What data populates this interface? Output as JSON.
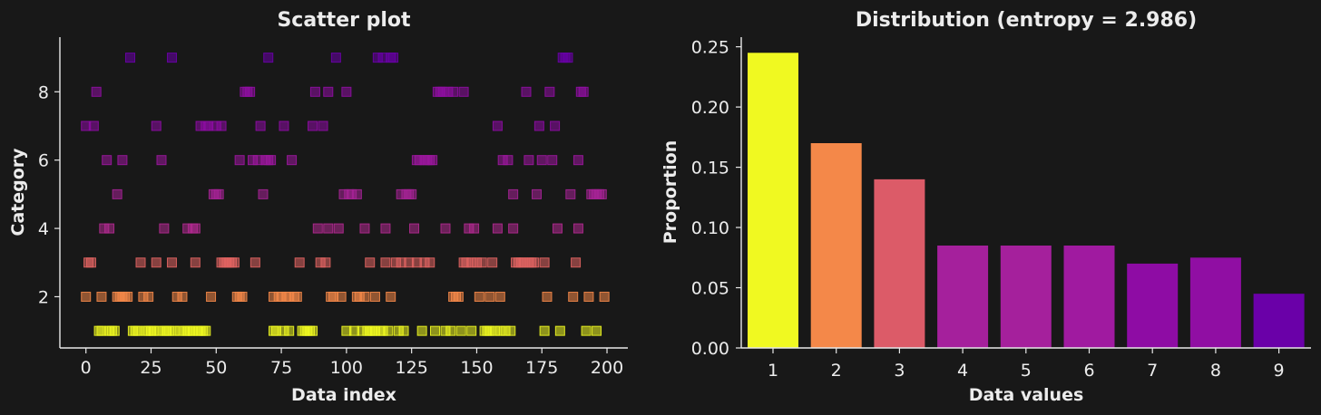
{
  "chart_data": [
    {
      "type": "scatter",
      "title": "Scatter plot",
      "xlabel": "Data index",
      "ylabel": "Category",
      "xlim": [
        -10,
        208
      ],
      "ylim": [
        0.5,
        9.6
      ],
      "xticks": [
        0,
        25,
        50,
        75,
        100,
        125,
        150,
        175,
        200
      ],
      "yticks": [
        2,
        4,
        6,
        8
      ],
      "colors": {
        "1": "#f0f921",
        "2": "#f48849",
        "3": "#e16462",
        "4": "#b12a90",
        "5": "#a62396",
        "6": "#9c179e",
        "7": "#8e0ca4",
        "8": "#900ea3",
        "9": "#6a00a8"
      },
      "points": [
        [
          0,
          7
        ],
        [
          0,
          2
        ],
        [
          1,
          3
        ],
        [
          2,
          3
        ],
        [
          3,
          7
        ],
        [
          4,
          8
        ],
        [
          5,
          1
        ],
        [
          6,
          2
        ],
        [
          6,
          1
        ],
        [
          7,
          4
        ],
        [
          8,
          6
        ],
        [
          9,
          4
        ],
        [
          9,
          1
        ],
        [
          10,
          1
        ],
        [
          11,
          1
        ],
        [
          12,
          5
        ],
        [
          12,
          2
        ],
        [
          13,
          2
        ],
        [
          14,
          6
        ],
        [
          14,
          2
        ],
        [
          15,
          2
        ],
        [
          16,
          2
        ],
        [
          17,
          9
        ],
        [
          18,
          1
        ],
        [
          19,
          1
        ],
        [
          20,
          1
        ],
        [
          21,
          3
        ],
        [
          22,
          2
        ],
        [
          23,
          1
        ],
        [
          24,
          2
        ],
        [
          24,
          1
        ],
        [
          25,
          1
        ],
        [
          26,
          1
        ],
        [
          27,
          7
        ],
        [
          27,
          3
        ],
        [
          28,
          1
        ],
        [
          29,
          6
        ],
        [
          30,
          4
        ],
        [
          30,
          1
        ],
        [
          31,
          1
        ],
        [
          32,
          1
        ],
        [
          33,
          9
        ],
        [
          33,
          3
        ],
        [
          34,
          1
        ],
        [
          35,
          2
        ],
        [
          36,
          1
        ],
        [
          37,
          2
        ],
        [
          38,
          1
        ],
        [
          39,
          4
        ],
        [
          39,
          1
        ],
        [
          40,
          1
        ],
        [
          41,
          4
        ],
        [
          41,
          1
        ],
        [
          42,
          4
        ],
        [
          42,
          3
        ],
        [
          43,
          1
        ],
        [
          44,
          7
        ],
        [
          44,
          1
        ],
        [
          45,
          1
        ],
        [
          46,
          7
        ],
        [
          46,
          1
        ],
        [
          47,
          7
        ],
        [
          48,
          2
        ],
        [
          49,
          5
        ],
        [
          50,
          7
        ],
        [
          50,
          5
        ],
        [
          51,
          5
        ],
        [
          52,
          7
        ],
        [
          52,
          3
        ],
        [
          53,
          3
        ],
        [
          54,
          3
        ],
        [
          55,
          3
        ],
        [
          56,
          3
        ],
        [
          57,
          3
        ],
        [
          58,
          2
        ],
        [
          59,
          6
        ],
        [
          59,
          2
        ],
        [
          60,
          2
        ],
        [
          61,
          8
        ],
        [
          62,
          8
        ],
        [
          63,
          8
        ],
        [
          64,
          6
        ],
        [
          65,
          3
        ],
        [
          66,
          6
        ],
        [
          67,
          7
        ],
        [
          68,
          5
        ],
        [
          69,
          6
        ],
        [
          70,
          6
        ],
        [
          70,
          9
        ],
        [
          71,
          6
        ],
        [
          72,
          2
        ],
        [
          72,
          1
        ],
        [
          73,
          1
        ],
        [
          74,
          2
        ],
        [
          75,
          2
        ],
        [
          76,
          7
        ],
        [
          76,
          1
        ],
        [
          77,
          2
        ],
        [
          78,
          1
        ],
        [
          78,
          2
        ],
        [
          79,
          6
        ],
        [
          80,
          2
        ],
        [
          81,
          2
        ],
        [
          82,
          3
        ],
        [
          83,
          1
        ],
        [
          84,
          1
        ],
        [
          85,
          1
        ],
        [
          86,
          1
        ],
        [
          87,
          1
        ],
        [
          87,
          7
        ],
        [
          88,
          8
        ],
        [
          89,
          4
        ],
        [
          90,
          3
        ],
        [
          91,
          7
        ],
        [
          92,
          3
        ],
        [
          93,
          8
        ],
        [
          93,
          4
        ],
        [
          94,
          2
        ],
        [
          95,
          2
        ],
        [
          96,
          9
        ],
        [
          97,
          4
        ],
        [
          98,
          2
        ],
        [
          99,
          5
        ],
        [
          100,
          1
        ],
        [
          100,
          8
        ],
        [
          101,
          5
        ],
        [
          102,
          5
        ],
        [
          103,
          1
        ],
        [
          104,
          5
        ],
        [
          104,
          2
        ],
        [
          105,
          2
        ],
        [
          106,
          1
        ],
        [
          107,
          4
        ],
        [
          107,
          2
        ],
        [
          108,
          1
        ],
        [
          109,
          1
        ],
        [
          109,
          3
        ],
        [
          110,
          1
        ],
        [
          111,
          2
        ],
        [
          111,
          1
        ],
        [
          112,
          9
        ],
        [
          113,
          1
        ],
        [
          114,
          9
        ],
        [
          114,
          1
        ],
        [
          115,
          4
        ],
        [
          115,
          3
        ],
        [
          116,
          1
        ],
        [
          117,
          9
        ],
        [
          117,
          2
        ],
        [
          118,
          9
        ],
        [
          119,
          3
        ],
        [
          120,
          1
        ],
        [
          121,
          5
        ],
        [
          121,
          3
        ],
        [
          122,
          1
        ],
        [
          123,
          5
        ],
        [
          124,
          5
        ],
        [
          124,
          3
        ],
        [
          125,
          5
        ],
        [
          126,
          4
        ],
        [
          127,
          6
        ],
        [
          127,
          3
        ],
        [
          128,
          6
        ],
        [
          129,
          1
        ],
        [
          130,
          6
        ],
        [
          130,
          3
        ],
        [
          131,
          6
        ],
        [
          132,
          6
        ],
        [
          132,
          3
        ],
        [
          133,
          6
        ],
        [
          134,
          1
        ],
        [
          135,
          8
        ],
        [
          136,
          8
        ],
        [
          137,
          8
        ],
        [
          138,
          4
        ],
        [
          138,
          1
        ],
        [
          139,
          8
        ],
        [
          140,
          1
        ],
        [
          141,
          8
        ],
        [
          141,
          2
        ],
        [
          142,
          2
        ],
        [
          143,
          2
        ],
        [
          144,
          1
        ],
        [
          145,
          8
        ],
        [
          145,
          3
        ],
        [
          146,
          3
        ],
        [
          147,
          4
        ],
        [
          148,
          3
        ],
        [
          148,
          1
        ],
        [
          149,
          4
        ],
        [
          150,
          3
        ],
        [
          151,
          2
        ],
        [
          152,
          3
        ],
        [
          153,
          1
        ],
        [
          154,
          1
        ],
        [
          155,
          1
        ],
        [
          155,
          2
        ],
        [
          156,
          3
        ],
        [
          157,
          1
        ],
        [
          158,
          7
        ],
        [
          158,
          4
        ],
        [
          159,
          1
        ],
        [
          159,
          2
        ],
        [
          160,
          6
        ],
        [
          161,
          1
        ],
        [
          162,
          6
        ],
        [
          163,
          1
        ],
        [
          164,
          5
        ],
        [
          164,
          4
        ],
        [
          165,
          3
        ],
        [
          166,
          3
        ],
        [
          167,
          3
        ],
        [
          168,
          3
        ],
        [
          169,
          8
        ],
        [
          170,
          3
        ],
        [
          170,
          6
        ],
        [
          171,
          3
        ],
        [
          172,
          3
        ],
        [
          173,
          5
        ],
        [
          174,
          7
        ],
        [
          175,
          6
        ],
        [
          176,
          1
        ],
        [
          176,
          3
        ],
        [
          177,
          2
        ],
        [
          178,
          8
        ],
        [
          179,
          6
        ],
        [
          180,
          7
        ],
        [
          181,
          4
        ],
        [
          182,
          1
        ],
        [
          183,
          9
        ],
        [
          184,
          9
        ],
        [
          185,
          9
        ],
        [
          186,
          5
        ],
        [
          187,
          2
        ],
        [
          188,
          3
        ],
        [
          189,
          6
        ],
        [
          189,
          4
        ],
        [
          190,
          8
        ],
        [
          191,
          8
        ],
        [
          192,
          1
        ],
        [
          193,
          2
        ],
        [
          194,
          5
        ],
        [
          195,
          5
        ],
        [
          196,
          5
        ],
        [
          196,
          1
        ],
        [
          197,
          5
        ],
        [
          198,
          5
        ],
        [
          199,
          2
        ]
      ]
    },
    {
      "type": "bar",
      "title": "Distribution (entropy = 2.986)",
      "xlabel": "Data values",
      "ylabel": "Proportion",
      "ylim": [
        0,
        0.258
      ],
      "yticks": [
        0.0,
        0.05,
        0.1,
        0.15,
        0.2,
        0.25
      ],
      "ytick_labels": [
        "0.00",
        "0.05",
        "0.10",
        "0.15",
        "0.20",
        "0.25"
      ],
      "categories": [
        "1",
        "2",
        "3",
        "4",
        "5",
        "6",
        "7",
        "8",
        "9"
      ],
      "values": [
        0.245,
        0.17,
        0.14,
        0.085,
        0.085,
        0.085,
        0.07,
        0.075,
        0.045
      ],
      "colors": [
        "#f0f921",
        "#f48849",
        "#dc5b68",
        "#a5209c",
        "#a5209c",
        "#a01aa0",
        "#8e0ca4",
        "#900ea3",
        "#6a00a8"
      ]
    }
  ]
}
